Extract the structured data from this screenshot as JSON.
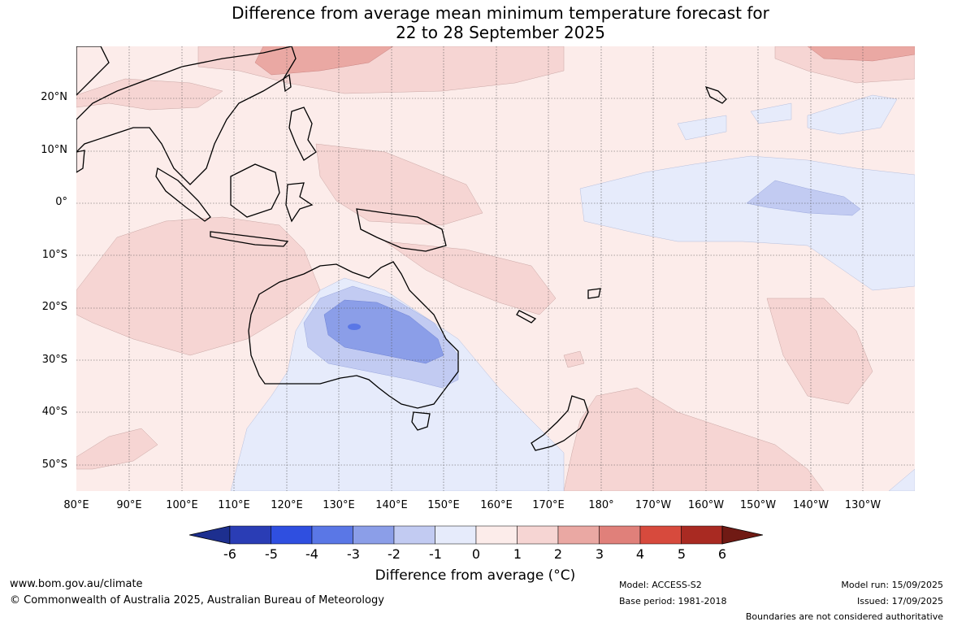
{
  "title": {
    "line1": "Difference from average mean minimum temperature forecast for",
    "line2": "22 to 28 September 2025"
  },
  "lat_labels": [
    "20°N",
    "10°N",
    "0°",
    "10°S",
    "20°S",
    "30°S",
    "40°S",
    "50°S"
  ],
  "lon_labels": [
    "80°E",
    "90°E",
    "100°E",
    "110°E",
    "120°E",
    "130°E",
    "140°E",
    "150°E",
    "160°E",
    "170°E",
    "180°",
    "170°W",
    "160°W",
    "150°W",
    "140°W",
    "130°W"
  ],
  "colorbar": {
    "title": "Difference from average (°C)",
    "ticks": [
      "-6",
      "-5",
      "-4",
      "-3",
      "-2",
      "-1",
      "0",
      "1",
      "2",
      "3",
      "4",
      "5",
      "6"
    ],
    "colors": [
      "#1d2f8f",
      "#2a3db5",
      "#2f4fe0",
      "#5a77e6",
      "#8b9ee8",
      "#c2cbf2",
      "#e6ebfb",
      "#fcecea",
      "#f6d5d3",
      "#eaa8a3",
      "#e0807a",
      "#d74a3d",
      "#a92a22",
      "#701a14"
    ],
    "land_outline": "#000000"
  },
  "footer": {
    "website": "www.bom.gov.au/climate",
    "copyright": "© Commonwealth of Australia 2025, Australian Bureau of Meteorology",
    "model": "Model: ACCESS-S2",
    "base_period": "Base period: 1981-2018",
    "model_run": "Model run: 15/09/2025",
    "issued": "Issued: 17/09/2025",
    "boundaries": "Boundaries are not considered authoritative"
  }
}
